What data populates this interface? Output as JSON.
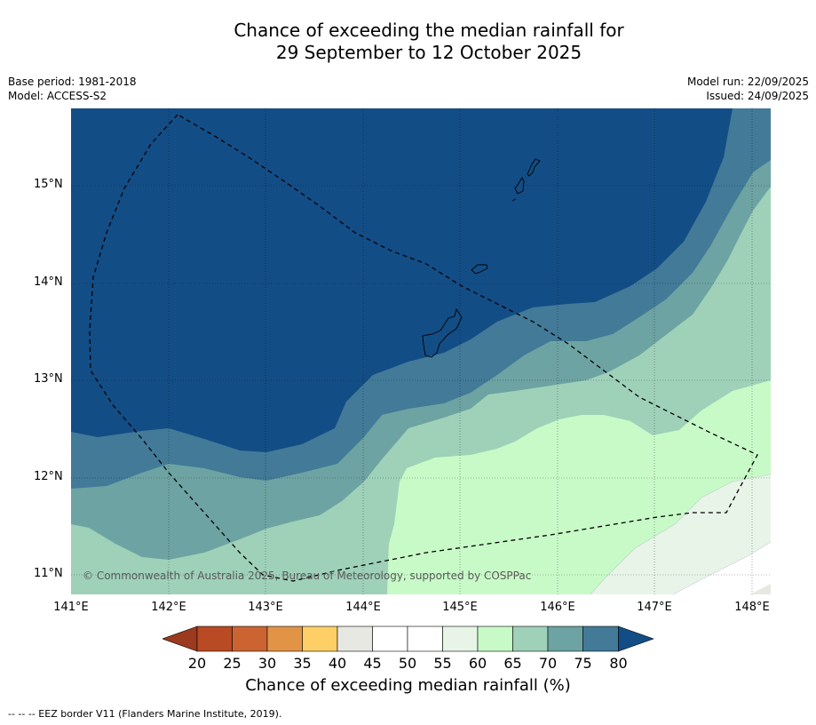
{
  "title": {
    "line1": "Chance of exceeding the median rainfall for",
    "line2": "29 September to 12 October 2025"
  },
  "meta": {
    "base_period": "Base period: 1981-2018",
    "model": "Model: ACCESS-S2",
    "model_run": "Model run: 22/09/2025",
    "issued": "Issued: 24/09/2025"
  },
  "axes": {
    "lat_labels": [
      "15°N",
      "14°N",
      "13°N",
      "12°N",
      "11°N"
    ],
    "lon_labels": [
      "141°E",
      "142°E",
      "143°E",
      "144°E",
      "145°E",
      "146°E",
      "147°E",
      "148°E"
    ]
  },
  "colorbar": {
    "ticks": [
      "20",
      "25",
      "30",
      "35",
      "40",
      "45",
      "50",
      "55",
      "60",
      "65",
      "70",
      "75",
      "80"
    ],
    "colors": [
      "#b84a24",
      "#cc6432",
      "#e29446",
      "#fdcf66",
      "#e8e8e3",
      "#ffffff",
      "#ffffff",
      "#e8f4e8",
      "#c8fac8",
      "#9fd1b9",
      "#6da3a2",
      "#427a98"
    ],
    "low_extend_color": "#9b3a1e",
    "high_extend_color": "#134d86",
    "label": "Chance of exceeding median rainfall (%)"
  },
  "map": {
    "copyright": "© Commonwealth of Australia 2025, Bureau of Meteorology, supported by COSPPac",
    "band_colors": [
      "#134d86",
      "#427a98",
      "#6da3a2",
      "#9fd1b9",
      "#c8fac8",
      "#e8f4e8",
      "#ffffff",
      "#e8e8e3"
    ]
  },
  "footer": {
    "legend": "--  --  -- EEZ border V11 (Flanders Marine Institute, 2019)."
  }
}
